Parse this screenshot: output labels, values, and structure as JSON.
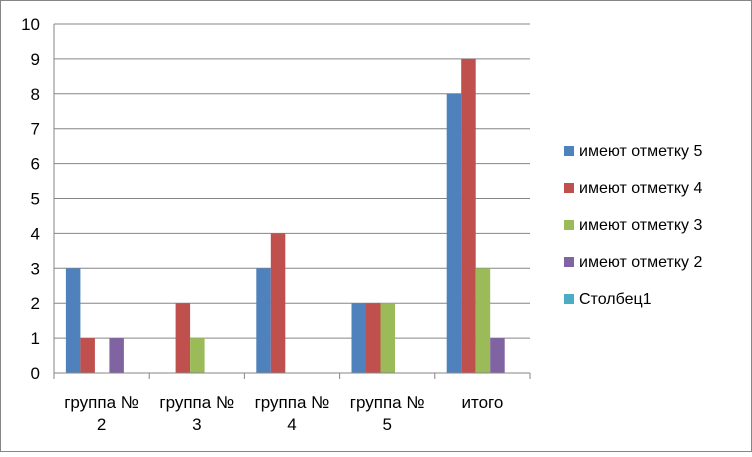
{
  "chart_data": {
    "type": "bar",
    "title": "",
    "xlabel": "",
    "ylabel": "",
    "ylim": [
      0,
      10
    ],
    "yticks": [
      0,
      1,
      2,
      3,
      4,
      5,
      6,
      7,
      8,
      9,
      10
    ],
    "grid": true,
    "legend_position": "right",
    "categories": [
      [
        "группа №",
        "2"
      ],
      [
        "группа №",
        "3"
      ],
      [
        "группа №",
        "4"
      ],
      [
        "группа №",
        "5"
      ],
      [
        "итого"
      ]
    ],
    "series": [
      {
        "name": "имеют отметку 5",
        "color": "#4F81BD",
        "values": [
          3,
          0,
          3,
          2,
          8
        ]
      },
      {
        "name": "имеют отметку 4",
        "color": "#C0504D",
        "values": [
          1,
          2,
          4,
          2,
          9
        ]
      },
      {
        "name": "имеют отметку 3",
        "color": "#9BBB59",
        "values": [
          0,
          1,
          0,
          2,
          3
        ]
      },
      {
        "name": "имеют отметку 2",
        "color": "#8064A2",
        "values": [
          1,
          0,
          0,
          0,
          1
        ]
      },
      {
        "name": "Столбец1",
        "color": "#4BACC6",
        "values": [
          0,
          0,
          0,
          0,
          0
        ]
      }
    ]
  }
}
